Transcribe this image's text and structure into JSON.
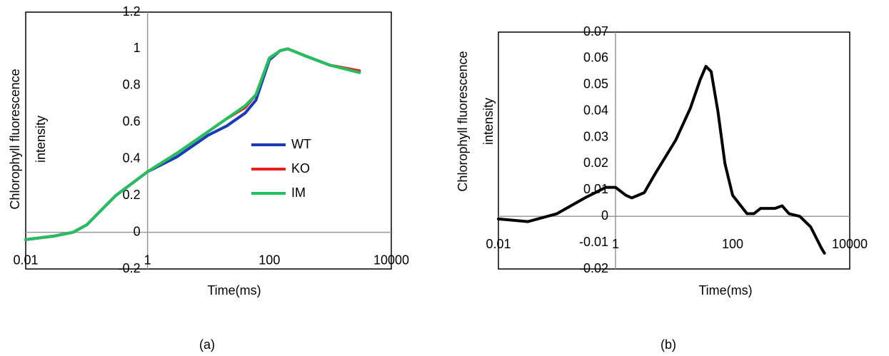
{
  "chart_data": [
    {
      "type": "line",
      "xlabel": "Time(ms)",
      "ylabel": "Chlorophyll fluorescence intensity",
      "caption": "(a)",
      "log_x": true,
      "xlim": [
        0.01,
        10000
      ],
      "xticks": [
        0.01,
        1,
        100,
        10000
      ],
      "ylim": [
        -0.2,
        1.2
      ],
      "yticks": [
        -0.2,
        0,
        0.2,
        0.4,
        0.6,
        0.8,
        1,
        1.2
      ],
      "grid": false,
      "legend": "center-right",
      "x": [
        0.01,
        0.03,
        0.06,
        0.1,
        0.3,
        1,
        3,
        10,
        20,
        40,
        60,
        100,
        150,
        200,
        400,
        1000,
        3000
      ],
      "series": [
        {
          "name": "WT",
          "color": "#1a3ab8",
          "values": [
            -0.04,
            -0.02,
            0.0,
            0.04,
            0.2,
            0.33,
            0.41,
            0.53,
            0.58,
            0.65,
            0.72,
            0.94,
            0.99,
            1.0,
            0.96,
            0.91,
            0.88
          ]
        },
        {
          "name": "KO",
          "color": "#e8201c",
          "values": [
            -0.04,
            -0.02,
            0.0,
            0.04,
            0.2,
            0.33,
            0.43,
            0.55,
            0.62,
            0.68,
            0.75,
            0.95,
            0.99,
            1.0,
            0.96,
            0.91,
            0.88
          ]
        },
        {
          "name": "IM",
          "color": "#22c060",
          "values": [
            -0.04,
            -0.02,
            0.0,
            0.04,
            0.2,
            0.33,
            0.43,
            0.55,
            0.62,
            0.69,
            0.75,
            0.95,
            0.99,
            1.0,
            0.96,
            0.91,
            0.87
          ]
        }
      ]
    },
    {
      "type": "line",
      "xlabel": "Time(ms)",
      "ylabel": "Chlorophyll fluorescence intensity",
      "caption": "(b)",
      "log_x": true,
      "xlim": [
        0.01,
        10000
      ],
      "xticks": [
        0.01,
        1,
        100,
        10000
      ],
      "ylim": [
        -0.02,
        0.07
      ],
      "yticks": [
        -0.02,
        -0.01,
        0,
        0.01,
        0.02,
        0.03,
        0.04,
        0.05,
        0.06,
        0.07
      ],
      "grid": false,
      "color": "#000000",
      "x": [
        0.01,
        0.032,
        0.1,
        0.3,
        0.68,
        1,
        1.5,
        1.9,
        3.1,
        4.7,
        10.7,
        18.9,
        28,
        35,
        43,
        56,
        74,
        100,
        176,
        230,
        300,
        530,
        700,
        920,
        1400,
        2150,
        3270,
        3700
      ],
      "values": [
        -0.001,
        -0.002,
        0.001,
        0.007,
        0.011,
        0.011,
        0.008,
        0.007,
        0.009,
        0.016,
        0.029,
        0.041,
        0.052,
        0.057,
        0.055,
        0.04,
        0.02,
        0.008,
        0.001,
        0.001,
        0.003,
        0.003,
        0.004,
        0.001,
        0.0,
        -0.004,
        -0.012,
        -0.014
      ]
    }
  ]
}
